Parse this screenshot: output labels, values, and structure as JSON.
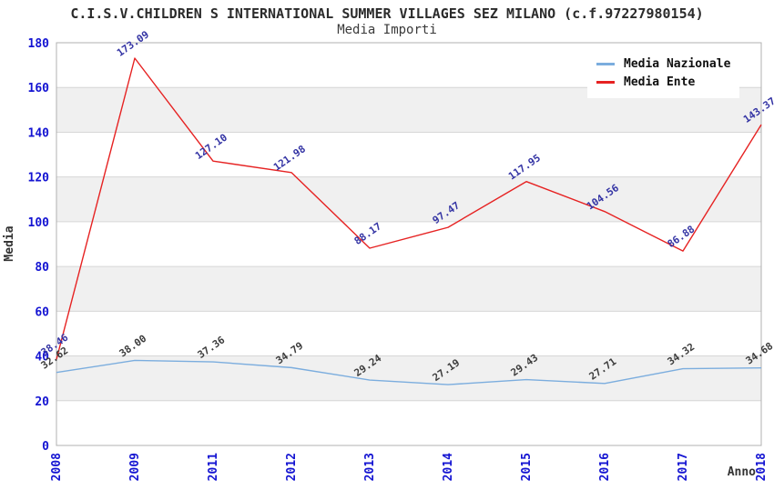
{
  "chart_data": {
    "type": "line",
    "title": "C.I.S.V.CHILDREN S INTERNATIONAL SUMMER VILLAGES SEZ MILANO (c.f.97227980154)",
    "subtitle": "Media Importi",
    "xlabel": "Anno",
    "ylabel": "Media",
    "categories": [
      "2008",
      "2009",
      "2011",
      "2012",
      "2013",
      "2014",
      "2015",
      "2016",
      "2017",
      "2018"
    ],
    "series": [
      {
        "name": "Media Nazionale",
        "color": "#7badde",
        "label_color": "#3c3c3c",
        "values": [
          32.62,
          38.0,
          37.36,
          34.79,
          29.24,
          27.19,
          29.43,
          27.71,
          34.32,
          34.68
        ]
      },
      {
        "name": "Media Ente",
        "color": "#e62222",
        "label_color": "#3434a4",
        "values": [
          38.46,
          173.09,
          127.1,
          121.98,
          88.17,
          97.47,
          117.95,
          104.56,
          86.88,
          143.37
        ]
      }
    ],
    "ylim": [
      0,
      180
    ],
    "yticks": [
      0,
      20,
      40,
      60,
      80,
      100,
      120,
      140,
      160,
      180
    ],
    "grid": true,
    "legend_position": "top-right",
    "style": {
      "tick_label_color": "#1414d2",
      "band_color": "#f0f0f0",
      "grid_color": "#d6d6d6",
      "border_color": "#b0b0b0",
      "axis_title_color": "#333333"
    }
  }
}
